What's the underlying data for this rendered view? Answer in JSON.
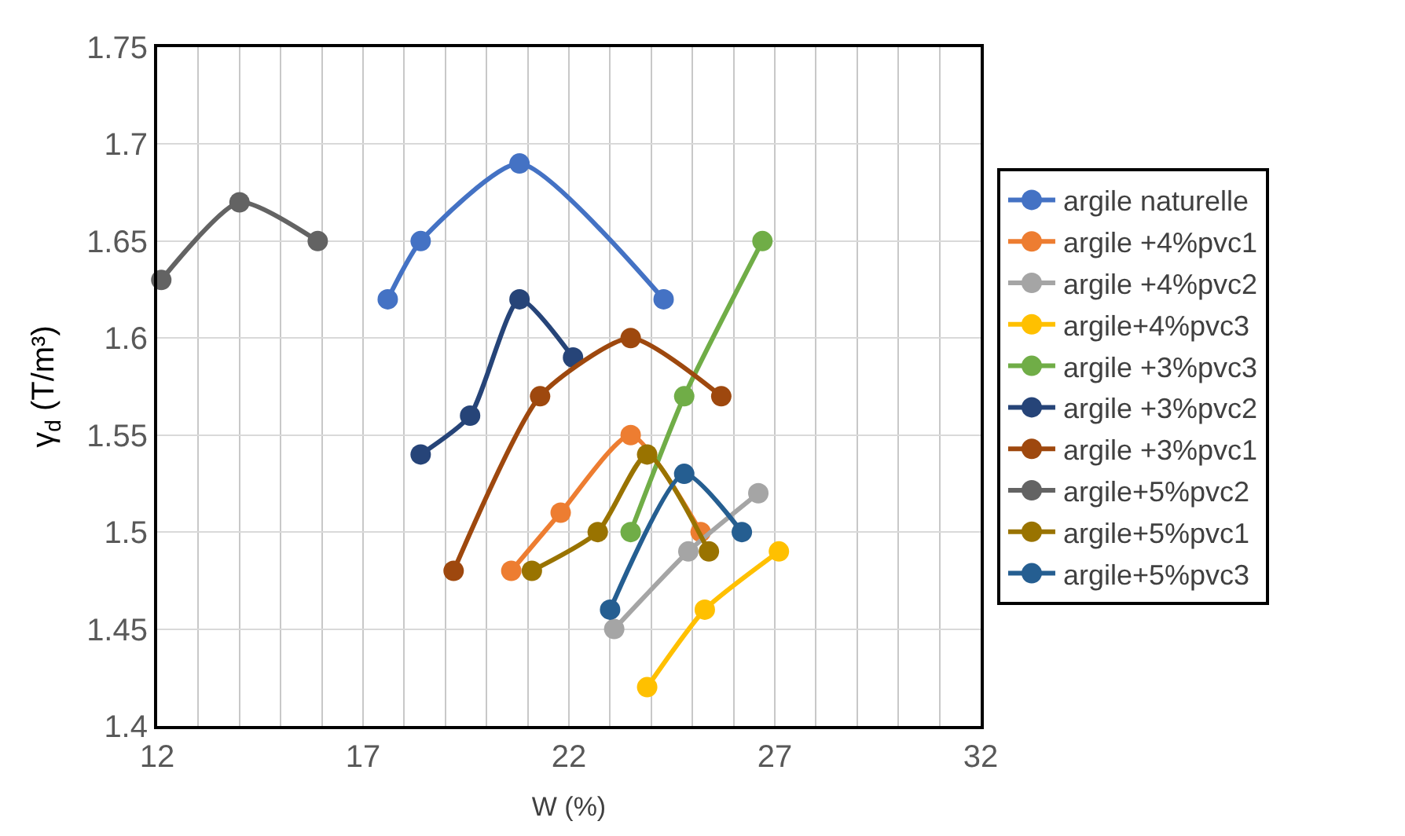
{
  "chart_data": {
    "type": "line",
    "xlabel": "W (%)",
    "ylabel": "γ$_{d}$ (T/m³)",
    "xlim": [
      12,
      32
    ],
    "xticks": [
      12,
      17,
      22,
      27,
      32
    ],
    "ylim": [
      1.4,
      1.75
    ],
    "yticks": [
      1.4,
      1.45,
      1.5,
      1.55,
      1.6,
      1.65,
      1.7,
      1.75
    ],
    "grid": true,
    "legend": "right",
    "marker": "circle",
    "line_style": "solid",
    "series": [
      {
        "name": "argile naturelle",
        "color": "#4472c4",
        "x": [
          17.6,
          18.4,
          20.8,
          24.3
        ],
        "values": [
          1.62,
          1.65,
          1.69,
          1.62
        ]
      },
      {
        "name": "argile +4%pvc1",
        "color": "#ed7d31",
        "x": [
          20.6,
          21.8,
          23.5,
          25.2
        ],
        "values": [
          1.48,
          1.51,
          1.55,
          1.5
        ]
      },
      {
        "name": "argile +4%pvc2",
        "color": "#a5a5a5",
        "x": [
          23.1,
          24.9,
          26.6
        ],
        "values": [
          1.45,
          1.49,
          1.52
        ]
      },
      {
        "name": "argile+4%pvc3",
        "color": "#ffc000",
        "x": [
          23.9,
          25.3,
          27.1
        ],
        "values": [
          1.42,
          1.46,
          1.49
        ]
      },
      {
        "name": "argile +3%pvc3",
        "color": "#70ad47",
        "x": [
          23.5,
          24.8,
          26.7
        ],
        "values": [
          1.5,
          1.57,
          1.65
        ]
      },
      {
        "name": "argile +3%pvc2",
        "color": "#264478",
        "x": [
          18.4,
          19.6,
          20.8,
          22.1
        ],
        "values": [
          1.54,
          1.56,
          1.62,
          1.59
        ]
      },
      {
        "name": "argile +3%pvc1",
        "color": "#9e480e",
        "x": [
          19.2,
          21.3,
          23.5,
          25.7
        ],
        "values": [
          1.48,
          1.57,
          1.6,
          1.57
        ]
      },
      {
        "name": "argile+5%pvc2",
        "color": "#636363",
        "x": [
          12.1,
          14.0,
          15.9
        ],
        "values": [
          1.63,
          1.67,
          1.65
        ]
      },
      {
        "name": "argile+5%pvc1",
        "color": "#997300",
        "x": [
          21.1,
          22.7,
          23.9,
          25.4
        ],
        "values": [
          1.48,
          1.5,
          1.54,
          1.49
        ]
      },
      {
        "name": "argile+5%pvc3",
        "color": "#255e91",
        "x": [
          23.0,
          24.8,
          26.2
        ],
        "values": [
          1.46,
          1.53,
          1.5
        ]
      }
    ]
  }
}
